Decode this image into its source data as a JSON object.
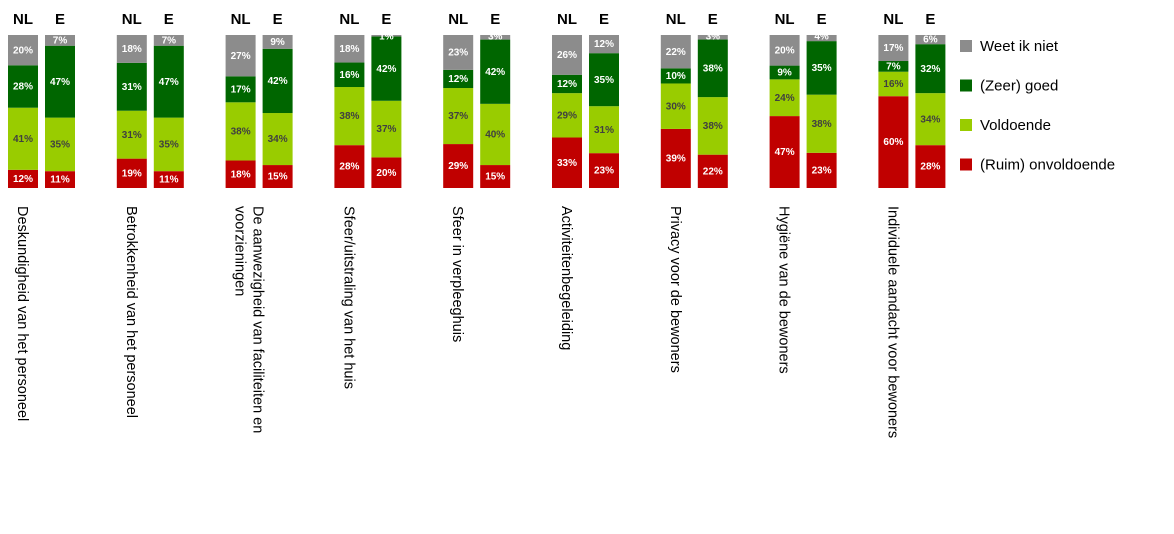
{
  "chart_data": {
    "type": "bar",
    "stacked": true,
    "percent_stacked": true,
    "group_labels": [
      "NL",
      "E"
    ],
    "categories": [
      "Deskundigheid van het personeel",
      "Betrokkenheid van het personeel",
      "De aanwezigheid van faciliteiten en voorzieningen",
      "Sfeer/uitstraling van het huis",
      "Sfeer in verpleeghuis",
      "Activiteitenbegeleiding",
      "Privacy voor de bewoners",
      "Hygiëne van de bewoners",
      "Individuele aandacht voor bewoners"
    ],
    "category_lines": [
      [
        "Deskundigheid van het personeel"
      ],
      [
        "Betrokkenheid van het personeel"
      ],
      [
        "De aanwezigheid van faciliteiten en",
        "voorzieningen"
      ],
      [
        "Sfeer/uitstraling van het huis"
      ],
      [
        "Sfeer in verpleeghuis"
      ],
      [
        "Activiteitenbegeleiding"
      ],
      [
        "Privacy voor de bewoners"
      ],
      [
        "Hygiëne van de bewoners"
      ],
      [
        "Individuele aandacht voor bewoners"
      ]
    ],
    "series": [
      {
        "name": "(Ruim) onvoldoende",
        "color": "#c00000",
        "label_color": "#ffffff",
        "NL": [
          12,
          19,
          18,
          28,
          29,
          33,
          39,
          47,
          60
        ],
        "E": [
          11,
          11,
          15,
          20,
          15,
          23,
          22,
          23,
          28
        ]
      },
      {
        "name": "Voldoende",
        "color": "#99cc00",
        "label_color": "#404040",
        "NL": [
          41,
          31,
          38,
          38,
          37,
          29,
          30,
          24,
          16
        ],
        "E": [
          35,
          35,
          34,
          37,
          40,
          31,
          38,
          38,
          34
        ]
      },
      {
        "name": "(Zeer) goed",
        "color": "#006600",
        "label_color": "#ffffff",
        "NL": [
          28,
          31,
          17,
          16,
          12,
          12,
          10,
          9,
          7
        ],
        "E": [
          47,
          47,
          42,
          42,
          42,
          35,
          38,
          35,
          32
        ]
      },
      {
        "name": "Weet ik niet",
        "color": "#8c8c8c",
        "label_color": "#ffffff",
        "NL": [
          20,
          18,
          27,
          18,
          23,
          26,
          22,
          20,
          17
        ],
        "E": [
          7,
          7,
          9,
          1,
          3,
          12,
          3,
          4,
          6
        ]
      }
    ],
    "legend_order": [
      "Weet ik niet",
      "(Zeer) goed",
      "Voldoende",
      "(Ruim) onvoldoende"
    ],
    "legend_position": "right",
    "ylim": [
      0,
      100
    ],
    "grid": false
  }
}
